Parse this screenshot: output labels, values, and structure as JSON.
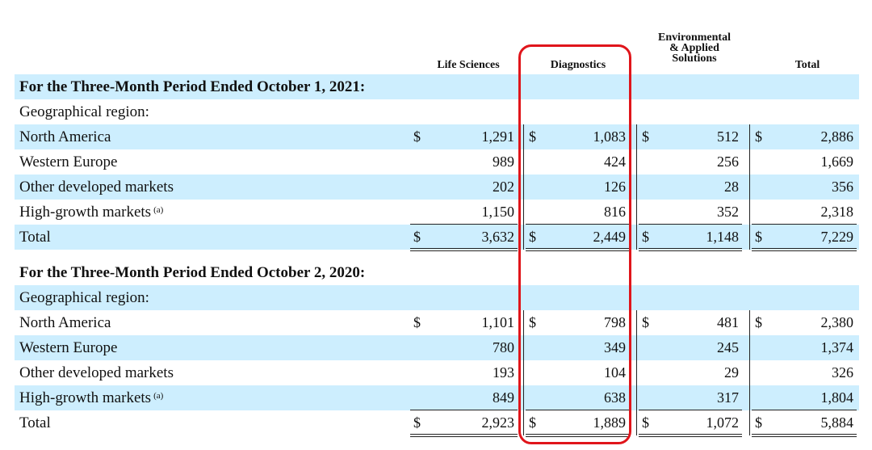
{
  "headers": {
    "life_sciences": "Life Sciences",
    "diagnostics": "Diagnostics",
    "environmental_line1": "Environmental",
    "environmental_line2": "& Applied",
    "environmental_line3": "Solutions",
    "total": "Total"
  },
  "currency_symbol": "$",
  "period_2021": {
    "title": "For the Three-Month Period Ended October 1, 2021:",
    "geo_label": "Geographical region:",
    "rows": [
      {
        "label": "North America",
        "life_sciences": "1,291",
        "diagnostics": "1,083",
        "environmental": "512",
        "total": "2,886"
      },
      {
        "label": "Western Europe",
        "life_sciences": "989",
        "diagnostics": "424",
        "environmental": "256",
        "total": "1,669"
      },
      {
        "label": "Other developed markets",
        "life_sciences": "202",
        "diagnostics": "126",
        "environmental": "28",
        "total": "356"
      },
      {
        "label": "High-growth markets",
        "footnote": "(a)",
        "life_sciences": "1,150",
        "diagnostics": "816",
        "environmental": "352",
        "total": "2,318"
      }
    ],
    "total_row": {
      "label": "Total",
      "life_sciences": "3,632",
      "diagnostics": "2,449",
      "environmental": "1,148",
      "total": "7,229"
    }
  },
  "period_2020": {
    "title": "For the Three-Month Period Ended October 2, 2020:",
    "geo_label": "Geographical region:",
    "rows": [
      {
        "label": "North America",
        "life_sciences": "1,101",
        "diagnostics": "798",
        "environmental": "481",
        "total": "2,380"
      },
      {
        "label": "Western Europe",
        "life_sciences": "780",
        "diagnostics": "349",
        "environmental": "245",
        "total": "1,374"
      },
      {
        "label": "Other developed markets",
        "life_sciences": "193",
        "diagnostics": "104",
        "environmental": "29",
        "total": "326"
      },
      {
        "label": "High-growth markets",
        "footnote": "(a)",
        "life_sciences": "849",
        "diagnostics": "638",
        "environmental": "317",
        "total": "1,804"
      }
    ],
    "total_row": {
      "label": "Total",
      "life_sciences": "2,923",
      "diagnostics": "1,889",
      "environmental": "1,072",
      "total": "5,884"
    }
  },
  "colors": {
    "row_shade": "#cdeefe",
    "highlight_border": "#e0151b"
  }
}
